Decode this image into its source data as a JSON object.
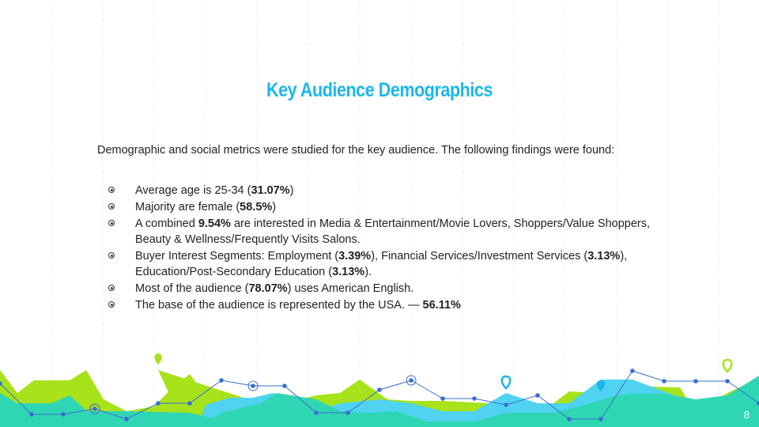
{
  "title": "Key Audience Demographics",
  "intro": "Demographic and social metrics were studied for the key audience. The following findings were found:",
  "bullets": [
    [
      {
        "t": "Average age is 25-34 ("
      },
      {
        "t": "31.07%",
        "b": true
      },
      {
        "t": ")"
      }
    ],
    [
      {
        "t": "Majority are female ("
      },
      {
        "t": "58.5%",
        "b": true
      },
      {
        "t": ")"
      }
    ],
    [
      {
        "t": "A combined "
      },
      {
        "t": "9.54%",
        "b": true
      },
      {
        "t": " are interested in Media & Entertainment/Movie Lovers, Shoppers/Value Shoppers, Beauty & Wellness/Frequently Visits Salons."
      }
    ],
    [
      {
        "t": "Buyer Interest Segments: Employment ("
      },
      {
        "t": "3.39%",
        "b": true
      },
      {
        "t": "), Financial Services/Investment Services ("
      },
      {
        "t": "3.13%",
        "b": true
      },
      {
        "t": "), Education/Post-Secondary Education ("
      },
      {
        "t": "3.13%",
        "b": true
      },
      {
        "t": ")."
      }
    ],
    [
      {
        "t": "Most of the audience ("
      },
      {
        "t": "78.07%",
        "b": true
      },
      {
        "t": ") uses American English."
      }
    ],
    [
      {
        "t": "The base of the audience is represented by the USA. — "
      },
      {
        "t": "56.11%",
        "b": true
      }
    ]
  ],
  "page_number": "8",
  "colors": {
    "title": "#1ab7ea",
    "lime": "#a8e21a",
    "teal": "#2fd6b4",
    "cyan": "#4fd3f0",
    "line": "#3a6fd0"
  }
}
